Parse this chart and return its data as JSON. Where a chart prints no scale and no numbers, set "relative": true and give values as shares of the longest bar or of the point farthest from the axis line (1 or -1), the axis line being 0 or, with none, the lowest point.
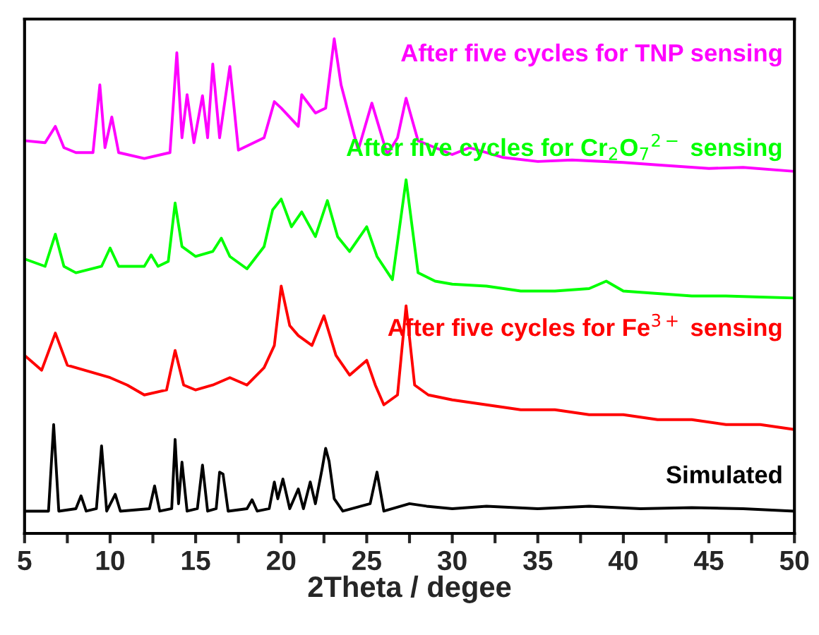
{
  "chart_data": {
    "type": "line",
    "relative": true,
    "xlabel": "2Theta / degee",
    "xlim": [
      5,
      50
    ],
    "xticks": [
      5,
      {
        "value": 7.5,
        "label": null
      },
      10,
      {
        "value": 12.5,
        "label": null
      },
      15,
      {
        "value": 17.5,
        "label": null
      },
      20,
      {
        "value": 22.5,
        "label": null
      },
      25,
      {
        "value": 27.5,
        "label": null
      },
      30,
      {
        "value": 32.5,
        "label": null
      },
      35,
      {
        "value": 37.5,
        "label": null
      },
      40,
      {
        "value": 42.5,
        "label": null
      },
      45,
      {
        "value": 47.5,
        "label": null
      },
      50
    ],
    "grid": false,
    "legend": false,
    "marker": "none",
    "line_style": "solid",
    "series": [
      {
        "name": "Simulated",
        "color": "#000000",
        "x": [
          5,
          6.4,
          6.7,
          7.0,
          8.0,
          8.3,
          8.6,
          9.2,
          9.5,
          9.8,
          10.3,
          10.6,
          12.3,
          12.6,
          12.9,
          13.6,
          13.8,
          14.0,
          14.2,
          14.5,
          15.1,
          15.4,
          15.7,
          16.2,
          16.4,
          16.6,
          16.9,
          18.0,
          18.3,
          18.6,
          19.3,
          19.6,
          19.8,
          20.1,
          20.5,
          21.0,
          21.3,
          21.7,
          22.0,
          22.4,
          22.6,
          22.8,
          23.1,
          23.6,
          25.2,
          25.6,
          26.0,
          27.5,
          28.5,
          30,
          32,
          35,
          38,
          41,
          44,
          47,
          50
        ],
        "values": [
          0.045,
          0.045,
          0.22,
          0.045,
          0.05,
          0.076,
          0.045,
          0.05,
          0.177,
          0.045,
          0.079,
          0.045,
          0.05,
          0.096,
          0.045,
          0.05,
          0.19,
          0.06,
          0.144,
          0.045,
          0.05,
          0.138,
          0.045,
          0.05,
          0.124,
          0.12,
          0.045,
          0.05,
          0.068,
          0.045,
          0.05,
          0.104,
          0.07,
          0.11,
          0.05,
          0.09,
          0.05,
          0.104,
          0.06,
          0.132,
          0.172,
          0.146,
          0.07,
          0.045,
          0.06,
          0.124,
          0.045,
          0.06,
          0.055,
          0.05,
          0.055,
          0.05,
          0.055,
          0.05,
          0.052,
          0.05,
          0.045
        ]
      },
      {
        "name": "After five cycles for Fe$^{3+}$ sensing",
        "color": "#ff0000",
        "x": [
          5,
          6.0,
          6.8,
          7.5,
          8.5,
          10,
          11,
          12,
          13.3,
          13.8,
          14.3,
          15,
          16,
          17,
          18,
          19,
          19.6,
          20.0,
          20.5,
          21,
          21.8,
          22.5,
          23.2,
          24,
          25,
          25.5,
          26,
          26.8,
          27.3,
          27.8,
          28.6,
          30,
          32,
          34,
          36,
          38,
          40,
          42,
          44,
          46,
          48,
          50
        ],
        "values": [
          0.36,
          0.33,
          0.405,
          0.34,
          0.33,
          0.315,
          0.3,
          0.28,
          0.29,
          0.37,
          0.3,
          0.29,
          0.3,
          0.315,
          0.3,
          0.335,
          0.38,
          0.5,
          0.42,
          0.4,
          0.38,
          0.44,
          0.36,
          0.32,
          0.35,
          0.3,
          0.26,
          0.28,
          0.46,
          0.3,
          0.28,
          0.27,
          0.26,
          0.25,
          0.25,
          0.24,
          0.24,
          0.23,
          0.23,
          0.22,
          0.22,
          0.21
        ]
      },
      {
        "name": "After five cycles for Cr$_{2}$O$_{7}$$^{2−}$ sensing",
        "color": "#00ff00",
        "x": [
          5,
          6.2,
          6.8,
          7.3,
          8,
          9.5,
          10.0,
          10.5,
          12.0,
          12.4,
          12.8,
          13.4,
          13.8,
          14.2,
          15,
          16.0,
          16.5,
          17,
          18,
          19,
          19.5,
          20.0,
          20.6,
          21.2,
          22,
          22.7,
          23.3,
          24,
          25,
          25.6,
          26.5,
          27.3,
          28,
          29,
          30,
          32,
          34,
          36,
          38,
          39,
          40,
          42,
          44,
          46,
          48,
          50
        ],
        "values": [
          0.555,
          0.54,
          0.605,
          0.54,
          0.527,
          0.54,
          0.577,
          0.54,
          0.54,
          0.563,
          0.54,
          0.55,
          0.668,
          0.58,
          0.56,
          0.57,
          0.597,
          0.56,
          0.535,
          0.58,
          0.654,
          0.676,
          0.62,
          0.65,
          0.6,
          0.673,
          0.6,
          0.57,
          0.62,
          0.56,
          0.513,
          0.715,
          0.527,
          0.51,
          0.504,
          0.5,
          0.49,
          0.49,
          0.495,
          0.51,
          0.49,
          0.485,
          0.48,
          0.48,
          0.478,
          0.476
        ]
      },
      {
        "name": "After five cycles for TNP sensing",
        "color": "#ff00ff",
        "x": [
          5,
          6.2,
          6.8,
          7.3,
          8,
          9.0,
          9.4,
          9.7,
          10.1,
          10.5,
          12,
          13.5,
          13.9,
          14.2,
          14.5,
          14.9,
          15.4,
          15.7,
          16.0,
          16.4,
          17.0,
          17.5,
          19,
          19.6,
          20.0,
          21,
          21.2,
          22,
          22.6,
          23.1,
          23.5,
          24.5,
          25.3,
          26.2,
          26.8,
          27.3,
          28,
          30,
          31,
          33,
          35,
          37,
          40,
          42,
          45,
          47,
          50
        ],
        "values": [
          0.794,
          0.79,
          0.823,
          0.78,
          0.77,
          0.77,
          0.907,
          0.78,
          0.842,
          0.77,
          0.758,
          0.77,
          0.972,
          0.8,
          0.887,
          0.79,
          0.885,
          0.8,
          0.949,
          0.8,
          0.944,
          0.775,
          0.8,
          0.873,
          0.86,
          0.823,
          0.887,
          0.85,
          0.86,
          1.0,
          0.907,
          0.775,
          0.87,
          0.766,
          0.8,
          0.88,
          0.794,
          0.766,
          0.78,
          0.76,
          0.752,
          0.755,
          0.75,
          0.745,
          0.738,
          0.74,
          0.732
        ]
      }
    ]
  }
}
